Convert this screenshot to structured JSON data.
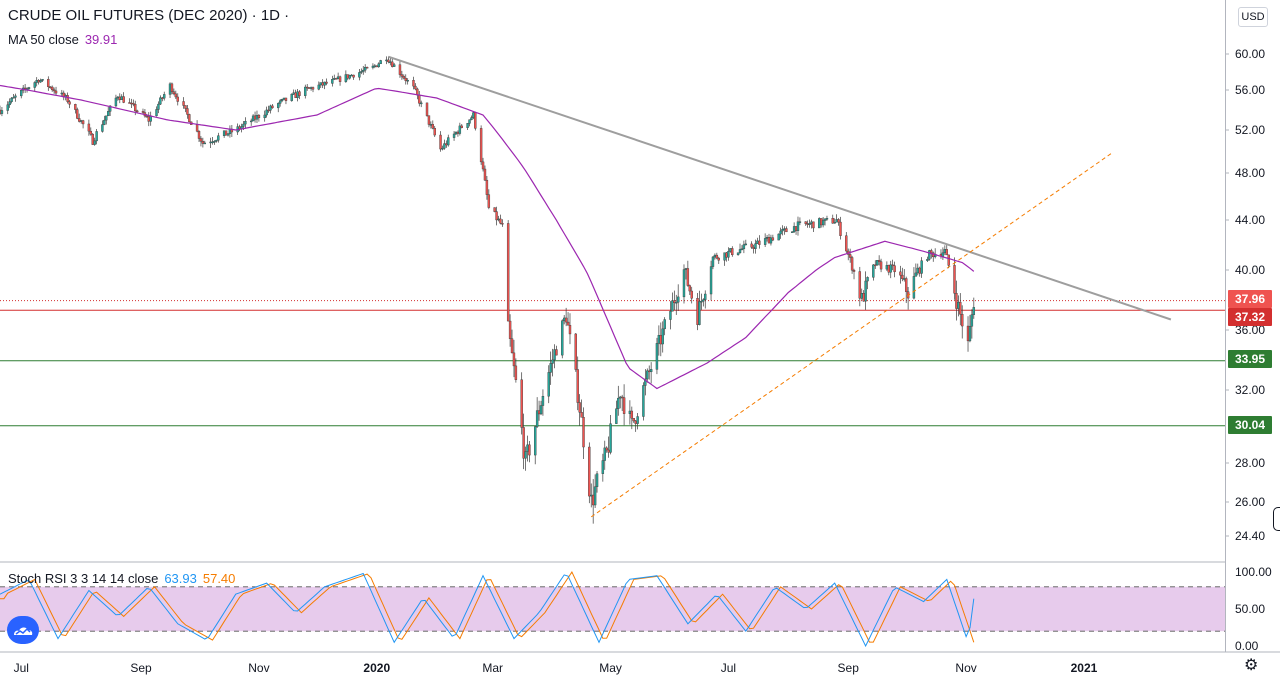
{
  "legend": {
    "symbol": "CRUDE OIL FUTURES (DEC 2020) · 1D ·",
    "ma_label": "MA 50 close",
    "ma_value": "39.91",
    "stoch_label": "Stoch RSI 3 3 14 14 close",
    "stoch_k": "63.93",
    "stoch_d": "57.40"
  },
  "currency": "USD",
  "colors": {
    "up": "#26a69a",
    "down": "#ef5350",
    "ma": "#9c27b0",
    "trendline": "#9e9e9e",
    "fib_dash": "#f57c00",
    "resistance": "#d32f2f",
    "support": "#2e7d32",
    "stoch_k": "#2196f3",
    "stoch_d": "#f57c00",
    "stoch_band": "#e1bee7"
  },
  "price_badges": {
    "last": "37.96",
    "red_level": "37.32",
    "support1": "33.95",
    "support2": "30.04"
  },
  "chart_data": {
    "type": "candlestick",
    "x_ticks": [
      "Jul",
      "Sep",
      "Nov",
      "2020",
      "Mar",
      "May",
      "Jul",
      "Sep",
      "Nov",
      "2021"
    ],
    "y_ticks": [
      "60.00",
      "56.00",
      "52.00",
      "48.00",
      "44.00",
      "40.00",
      "36.00",
      "32.00",
      "28.00",
      "26.00",
      "24.40"
    ],
    "y_range": [
      23.5,
      61.5
    ],
    "x_range": [
      "2019-06-20",
      "2021-03-15"
    ],
    "levels": [
      {
        "price": 37.96,
        "style": "dotted",
        "color": "resistance"
      },
      {
        "price": 37.32,
        "style": "solid",
        "color": "resistance"
      },
      {
        "price": 33.95,
        "style": "solid",
        "color": "support"
      },
      {
        "price": 30.04,
        "style": "solid",
        "color": "support"
      }
    ],
    "trendline": {
      "from": [
        "2020-01-07",
        59.7
      ],
      "to": [
        "2021-02-15",
        36.7
      ]
    },
    "fib_line": {
      "from": [
        "2020-04-21",
        25.3
      ],
      "to": [
        "2021-01-15",
        49.8
      ]
    },
    "ma_anchors": [
      [
        "2019-06-20",
        56.5
      ],
      [
        "2019-08-01",
        55.0
      ],
      [
        "2019-09-15",
        53.0
      ],
      [
        "2019-10-20",
        52.0
      ],
      [
        "2019-12-01",
        53.5
      ],
      [
        "2020-01-01",
        56.2
      ],
      [
        "2020-02-01",
        55.2
      ],
      [
        "2020-02-25",
        53.5
      ],
      [
        "2020-03-15",
        49.0
      ],
      [
        "2020-04-01",
        44.5
      ],
      [
        "2020-04-20",
        39.5
      ],
      [
        "2020-05-10",
        33.5
      ],
      [
        "2020-05-25",
        32.1
      ],
      [
        "2020-06-20",
        33.8
      ],
      [
        "2020-07-10",
        35.5
      ],
      [
        "2020-08-01",
        38.5
      ],
      [
        "2020-08-25",
        41.0
      ],
      [
        "2020-09-20",
        42.3
      ],
      [
        "2020-10-10",
        41.5
      ],
      [
        "2020-10-30",
        40.6
      ],
      [
        "2020-11-05",
        39.91
      ]
    ],
    "candle_anchors": [
      [
        "2019-06-20",
        54.0
      ],
      [
        "2019-07-10",
        57.2
      ],
      [
        "2019-07-25",
        55.0
      ],
      [
        "2019-08-07",
        51.0
      ],
      [
        "2019-08-20",
        55.5
      ],
      [
        "2019-09-05",
        53.0
      ],
      [
        "2019-09-16",
        56.5
      ],
      [
        "2019-10-03",
        50.8
      ],
      [
        "2019-10-20",
        52.0
      ],
      [
        "2019-11-10",
        54.5
      ],
      [
        "2019-11-25",
        56.0
      ],
      [
        "2019-12-10",
        57.0
      ],
      [
        "2019-12-30",
        58.5
      ],
      [
        "2020-01-06",
        59.7
      ],
      [
        "2020-01-20",
        56.2
      ],
      [
        "2020-02-03",
        50.2
      ],
      [
        "2020-02-20",
        53.5
      ],
      [
        "2020-02-28",
        45.0
      ],
      [
        "2020-03-06",
        43.5
      ],
      [
        "2020-03-09",
        36.0
      ],
      [
        "2020-03-18",
        28.0
      ],
      [
        "2020-03-24",
        30.5
      ],
      [
        "2020-04-02",
        34.5
      ],
      [
        "2020-04-08",
        37.0
      ],
      [
        "2020-04-21",
        26.0
      ],
      [
        "2020-04-29",
        28.5
      ],
      [
        "2020-05-06",
        32.0
      ],
      [
        "2020-05-12",
        30.0
      ],
      [
        "2020-05-22",
        33.5
      ],
      [
        "2020-06-08",
        40.0
      ],
      [
        "2020-06-15",
        37.0
      ],
      [
        "2020-06-23",
        41.0
      ],
      [
        "2020-07-15",
        42.0
      ],
      [
        "2020-08-05",
        43.5
      ],
      [
        "2020-08-26",
        44.0
      ],
      [
        "2020-09-08",
        38.0
      ],
      [
        "2020-09-15",
        40.5
      ],
      [
        "2020-09-25",
        40.0
      ],
      [
        "2020-10-02",
        38.5
      ],
      [
        "2020-10-12",
        41.2
      ],
      [
        "2020-10-21",
        41.5
      ],
      [
        "2020-10-28",
        37.5
      ],
      [
        "2020-11-02",
        35.0
      ],
      [
        "2020-11-05",
        37.96
      ]
    ],
    "stoch_anchors_k": [
      [
        "2019-06-20",
        70
      ],
      [
        "2019-07-05",
        90
      ],
      [
        "2019-07-20",
        10
      ],
      [
        "2019-08-05",
        75
      ],
      [
        "2019-08-20",
        40
      ],
      [
        "2019-09-05",
        80
      ],
      [
        "2019-09-20",
        30
      ],
      [
        "2019-10-05",
        8
      ],
      [
        "2019-10-20",
        70
      ],
      [
        "2019-11-05",
        85
      ],
      [
        "2019-11-20",
        45
      ],
      [
        "2019-12-05",
        80
      ],
      [
        "2019-12-25",
        98
      ],
      [
        "2020-01-10",
        5
      ],
      [
        "2020-01-25",
        65
      ],
      [
        "2020-02-10",
        10
      ],
      [
        "2020-02-25",
        95
      ],
      [
        "2020-03-12",
        10
      ],
      [
        "2020-03-25",
        45
      ],
      [
        "2020-04-08",
        100
      ],
      [
        "2020-04-25",
        5
      ],
      [
        "2020-05-10",
        90
      ],
      [
        "2020-05-25",
        95
      ],
      [
        "2020-06-10",
        30
      ],
      [
        "2020-06-25",
        70
      ],
      [
        "2020-07-10",
        20
      ],
      [
        "2020-07-25",
        80
      ],
      [
        "2020-08-10",
        50
      ],
      [
        "2020-08-25",
        85
      ],
      [
        "2020-09-10",
        0
      ],
      [
        "2020-09-25",
        80
      ],
      [
        "2020-10-10",
        60
      ],
      [
        "2020-10-22",
        90
      ],
      [
        "2020-11-02",
        5
      ],
      [
        "2020-11-05",
        63.93
      ]
    ],
    "stoch_range": [
      0,
      100
    ],
    "stoch_ticks": [
      "100.00",
      "50.00",
      "0.00"
    ],
    "stoch_band": [
      20,
      80
    ]
  }
}
